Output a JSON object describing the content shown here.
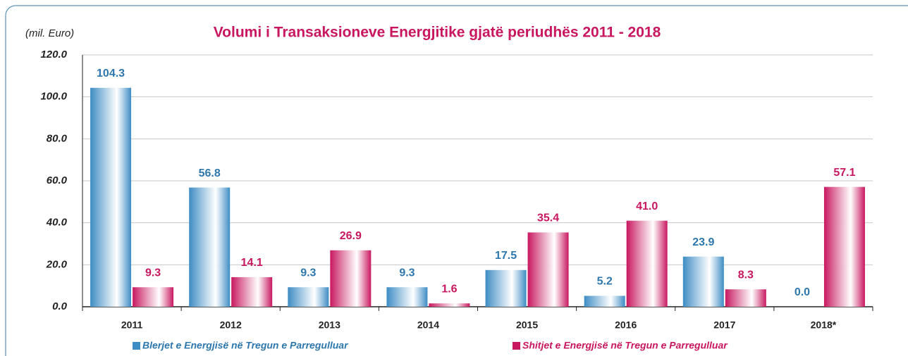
{
  "chart_data": {
    "type": "bar",
    "title": "Volumi i Transaksioneve Energjitike gjatë periudhës 2011 - 2018",
    "y_label": "(mil. Euro)",
    "categories": [
      "2011",
      "2012",
      "2013",
      "2014",
      "2015",
      "2016",
      "2017",
      "2018*"
    ],
    "series": [
      {
        "name": "Blerjet e Energjisë në Tregun e Parregulluar",
        "color": "#3d8cc4",
        "values": [
          104.3,
          56.8,
          9.3,
          9.3,
          17.5,
          5.2,
          23.9,
          0
        ],
        "value_labels": [
          "104.3",
          "56.8",
          "9.3",
          "9.3",
          "17.5",
          "5.2",
          "23.9",
          "0.0"
        ]
      },
      {
        "name": "Shitjet e Energjisë në Tregun e Parregulluar",
        "color": "#c8175f",
        "values": [
          9.3,
          14.1,
          26.9,
          1.6,
          35.4,
          41,
          8.3,
          57.1
        ],
        "value_labels": [
          "9.3",
          "14.1",
          "26.9",
          "1.6",
          "35.4",
          "41.0",
          "8.3",
          "57.1"
        ]
      }
    ],
    "ylim": [
      0,
      120
    ],
    "yticks": [
      {
        "value": 0,
        "label": "0.0"
      },
      {
        "value": 20,
        "label": "20.0"
      },
      {
        "value": 40,
        "label": "40.0"
      },
      {
        "value": 60,
        "label": "60.0"
      },
      {
        "value": 80,
        "label": "80.0"
      },
      {
        "value": 100,
        "label": "100.0"
      },
      {
        "value": 120,
        "label": "120.0"
      }
    ],
    "grid": true,
    "legend": "bottom"
  }
}
